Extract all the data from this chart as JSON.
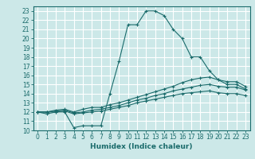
{
  "xlabel": "Humidex (Indice chaleur)",
  "bg_color": "#cce8e8",
  "grid_color": "#ffffff",
  "line_color": "#1a6b6b",
  "xlim": [
    -0.5,
    23.5
  ],
  "ylim": [
    10,
    23.5
  ],
  "yticks": [
    10,
    11,
    12,
    13,
    14,
    15,
    16,
    17,
    18,
    19,
    20,
    21,
    22,
    23
  ],
  "xticks": [
    0,
    1,
    2,
    3,
    4,
    5,
    6,
    7,
    8,
    9,
    10,
    11,
    12,
    13,
    14,
    15,
    16,
    17,
    18,
    19,
    20,
    21,
    22,
    23
  ],
  "line1_x": [
    0,
    1,
    2,
    3,
    4,
    5,
    6,
    7,
    8,
    9,
    10,
    11,
    12,
    13,
    14,
    15,
    16,
    17,
    18,
    19,
    20,
    21,
    22,
    23
  ],
  "line1_y": [
    12.0,
    11.8,
    12.0,
    12.0,
    10.3,
    10.5,
    10.5,
    10.5,
    14.0,
    17.5,
    21.5,
    21.5,
    23.0,
    23.0,
    22.5,
    21.0,
    20.0,
    18.0,
    18.0,
    16.5,
    15.5,
    15.0,
    15.0,
    14.5
  ],
  "line2_x": [
    0,
    1,
    2,
    3,
    4,
    5,
    6,
    7,
    8,
    9,
    10,
    11,
    12,
    13,
    14,
    15,
    16,
    17,
    18,
    19,
    20,
    21,
    22,
    23
  ],
  "line2_y": [
    12.0,
    12.0,
    12.2,
    12.3,
    12.0,
    12.3,
    12.5,
    12.5,
    12.8,
    13.0,
    13.3,
    13.6,
    13.9,
    14.2,
    14.5,
    14.8,
    15.2,
    15.5,
    15.7,
    15.8,
    15.5,
    15.3,
    15.3,
    14.8
  ],
  "line3_x": [
    0,
    1,
    2,
    3,
    4,
    5,
    6,
    7,
    8,
    9,
    10,
    11,
    12,
    13,
    14,
    15,
    16,
    17,
    18,
    19,
    20,
    21,
    22,
    23
  ],
  "line3_y": [
    12.0,
    12.0,
    12.1,
    12.2,
    11.9,
    12.0,
    12.2,
    12.3,
    12.5,
    12.7,
    13.0,
    13.3,
    13.5,
    13.8,
    14.0,
    14.3,
    14.5,
    14.7,
    14.9,
    15.0,
    14.8,
    14.7,
    14.7,
    14.4
  ],
  "line4_x": [
    0,
    1,
    2,
    3,
    4,
    5,
    6,
    7,
    8,
    9,
    10,
    11,
    12,
    13,
    14,
    15,
    16,
    17,
    18,
    19,
    20,
    21,
    22,
    23
  ],
  "line4_y": [
    12.0,
    12.0,
    12.0,
    12.1,
    11.8,
    11.9,
    12.0,
    12.1,
    12.3,
    12.5,
    12.7,
    13.0,
    13.2,
    13.4,
    13.6,
    13.8,
    14.0,
    14.1,
    14.2,
    14.3,
    14.1,
    14.0,
    14.0,
    13.8
  ],
  "tick_fontsize": 5.5,
  "xlabel_fontsize": 6.5
}
